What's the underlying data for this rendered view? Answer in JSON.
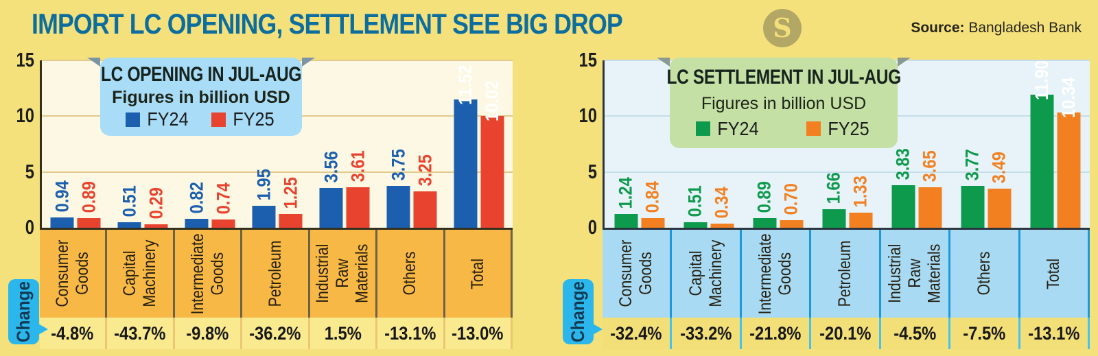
{
  "page": {
    "background": "#F4E17C"
  },
  "header": {
    "title": "IMPORT LC OPENING, SETTLEMENT SEE BIG DROP",
    "title_color": "#0D6E9E",
    "logo_glyph": "S",
    "logo_bg": "#B3A765",
    "logo_glyph_color": "#F2DF7A",
    "source_label": "Source:",
    "source_value": " Bangladesh Bank"
  },
  "change_row_label": "Change",
  "chart_data": [
    {
      "type": "bar",
      "title": "LC OPENING IN JUL-AUG",
      "subtitle": "Figures in billion USD",
      "categories": [
        "Consumer Goods",
        "Capital Machinery",
        "Intermediate Goods",
        "Petroleum",
        "Industrial Raw Materials",
        "Others",
        "Total"
      ],
      "categories_display": [
        "Consumer\nGoods",
        "Capital\nMachinery",
        "Intermediate\nGoods",
        "Petroleum",
        "Industrial\nRaw\nMaterials",
        "Others",
        "Total"
      ],
      "series": [
        {
          "name": "FY24",
          "color": "#1B5FAE",
          "values": [
            0.94,
            0.51,
            0.82,
            1.95,
            3.56,
            3.75,
            11.52
          ]
        },
        {
          "name": "FY25",
          "color": "#E8432E",
          "values": [
            0.89,
            0.29,
            0.74,
            1.25,
            3.61,
            3.25,
            10.02
          ]
        }
      ],
      "value_labels": [
        [
          "0.94",
          "0.51",
          "0.82",
          "1.95",
          "3.56",
          "3.75",
          "11.52"
        ],
        [
          "0.89",
          "0.29",
          "0.74",
          "1.25",
          "3.61",
          "3.25",
          "10.02"
        ]
      ],
      "changes": [
        "-4.8%",
        "-43.7%",
        "-9.8%",
        "-36.2%",
        "1.5%",
        "-13.1%",
        "-13.0%"
      ],
      "ylim": [
        0,
        15
      ],
      "yticks": [
        0,
        5,
        10,
        15
      ],
      "grid": true,
      "legend_position": "top-inside"
    },
    {
      "type": "bar",
      "title": "LC SETTLEMENT IN JUL-AUG",
      "subtitle": "Figures in billion USD",
      "categories": [
        "Consumer Goods",
        "Capital Machinery",
        "Intermediate Goods",
        "Petroleum",
        "Industrial Raw Materials",
        "Others",
        "Total"
      ],
      "categories_display": [
        "Consumer\nGoods",
        "Capital\nMachinery",
        "Intermediate\nGoods",
        "Petroleum",
        "Industrial\nRaw\nMaterials",
        "Others",
        "Total"
      ],
      "series": [
        {
          "name": "FY24",
          "color": "#0E9A4C",
          "values": [
            1.24,
            0.51,
            0.89,
            1.66,
            3.83,
            3.77,
            11.9
          ]
        },
        {
          "name": "FY25",
          "color": "#F28020",
          "values": [
            0.84,
            0.34,
            0.7,
            1.33,
            3.65,
            3.49,
            10.34
          ]
        }
      ],
      "value_labels": [
        [
          "1.24",
          "0.51",
          "0.89",
          "1.66",
          "3.83",
          "3.77",
          "11.90"
        ],
        [
          "0.84",
          "0.34",
          "0.70",
          "1.33",
          "3.65",
          "3.49",
          "10.34"
        ]
      ],
      "changes": [
        "-32.4%",
        "-33.2%",
        "-21.8%",
        "-20.1%",
        "-4.5%",
        "-7.5%",
        "-13.1%"
      ],
      "ylim": [
        0,
        15
      ],
      "yticks": [
        0,
        5,
        10,
        15
      ],
      "grid": true,
      "legend_position": "top-inside"
    }
  ],
  "themes": [
    {
      "plot_bg": "#FCF8E3",
      "grid_color": "#E2CA8E",
      "axis_color": "#33301f",
      "band_bg": "#F7B845",
      "band_divider": "#6B6247",
      "change_bg": "#F9E98F",
      "change_divider": "#ECC673",
      "box_bg": "#A8DCF7",
      "box_fold": "#7D94A3",
      "tab_bg": "#2BB7EB",
      "tab_text": "#133A54",
      "inside_label_color": "#FFFFFF"
    },
    {
      "plot_bg": "#E7F3F9",
      "grid_color": "#C6DEE9",
      "axis_color": "#2c3640",
      "band_bg": "#A9DAF3",
      "band_divider": "#1E98D8",
      "change_bg": "#F2DF78",
      "change_divider": "#45C2F0",
      "box_bg": "#C5E0A5",
      "box_fold": "#8A9A8F",
      "tab_bg": "#2BB7EB",
      "tab_text": "#133A54",
      "inside_label_color": "#FFFFFF"
    }
  ]
}
